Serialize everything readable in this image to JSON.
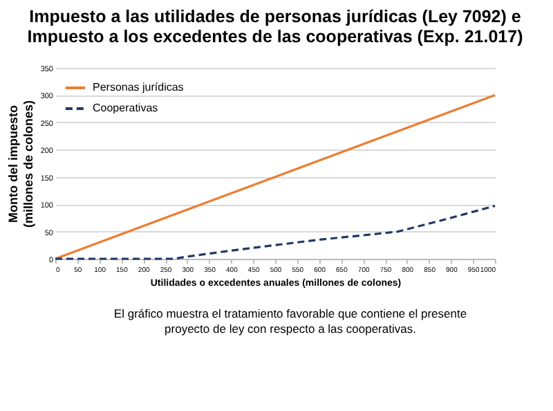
{
  "chart_data": {
    "type": "line",
    "title": [
      "Impuesto a las utilidades de personas jurídicas (Ley 7092) e",
      "Impuesto a los excedentes de las cooperativas (Exp. 21.017)"
    ],
    "xlabel": "Utilidades o excedentes anuales (millones de colones)",
    "ylabel": [
      "Monto del impuesto",
      "(millones de colones)"
    ],
    "series": [
      {
        "name": "Personas jurídicas",
        "color": "#ed7d31",
        "line_style": "solid",
        "x": [
          0,
          1000
        ],
        "values": [
          0,
          300
        ]
      },
      {
        "name": "Cooperativas",
        "color": "#203864",
        "line_style": "dashed",
        "x": [
          0,
          270,
          300,
          400,
          500,
          600,
          700,
          780,
          900,
          1000
        ],
        "values": [
          0,
          0,
          4,
          15,
          25,
          35,
          43,
          50,
          75,
          97
        ]
      }
    ],
    "xlim": [
      0,
      1000
    ],
    "xticks": [
      0,
      50,
      100,
      150,
      200,
      250,
      300,
      350,
      400,
      450,
      500,
      550,
      600,
      650,
      700,
      750,
      800,
      850,
      900,
      950,
      1000
    ],
    "ylim": [
      0,
      350
    ],
    "yticks": [
      0,
      50,
      100,
      150,
      200,
      250,
      300,
      350
    ],
    "grid": "y",
    "legend": "top left",
    "annotations": [
      "El gráfico muestra el tratamiento favorable que contiene el presente proyecto de ley con respecto a las cooperativas."
    ]
  }
}
